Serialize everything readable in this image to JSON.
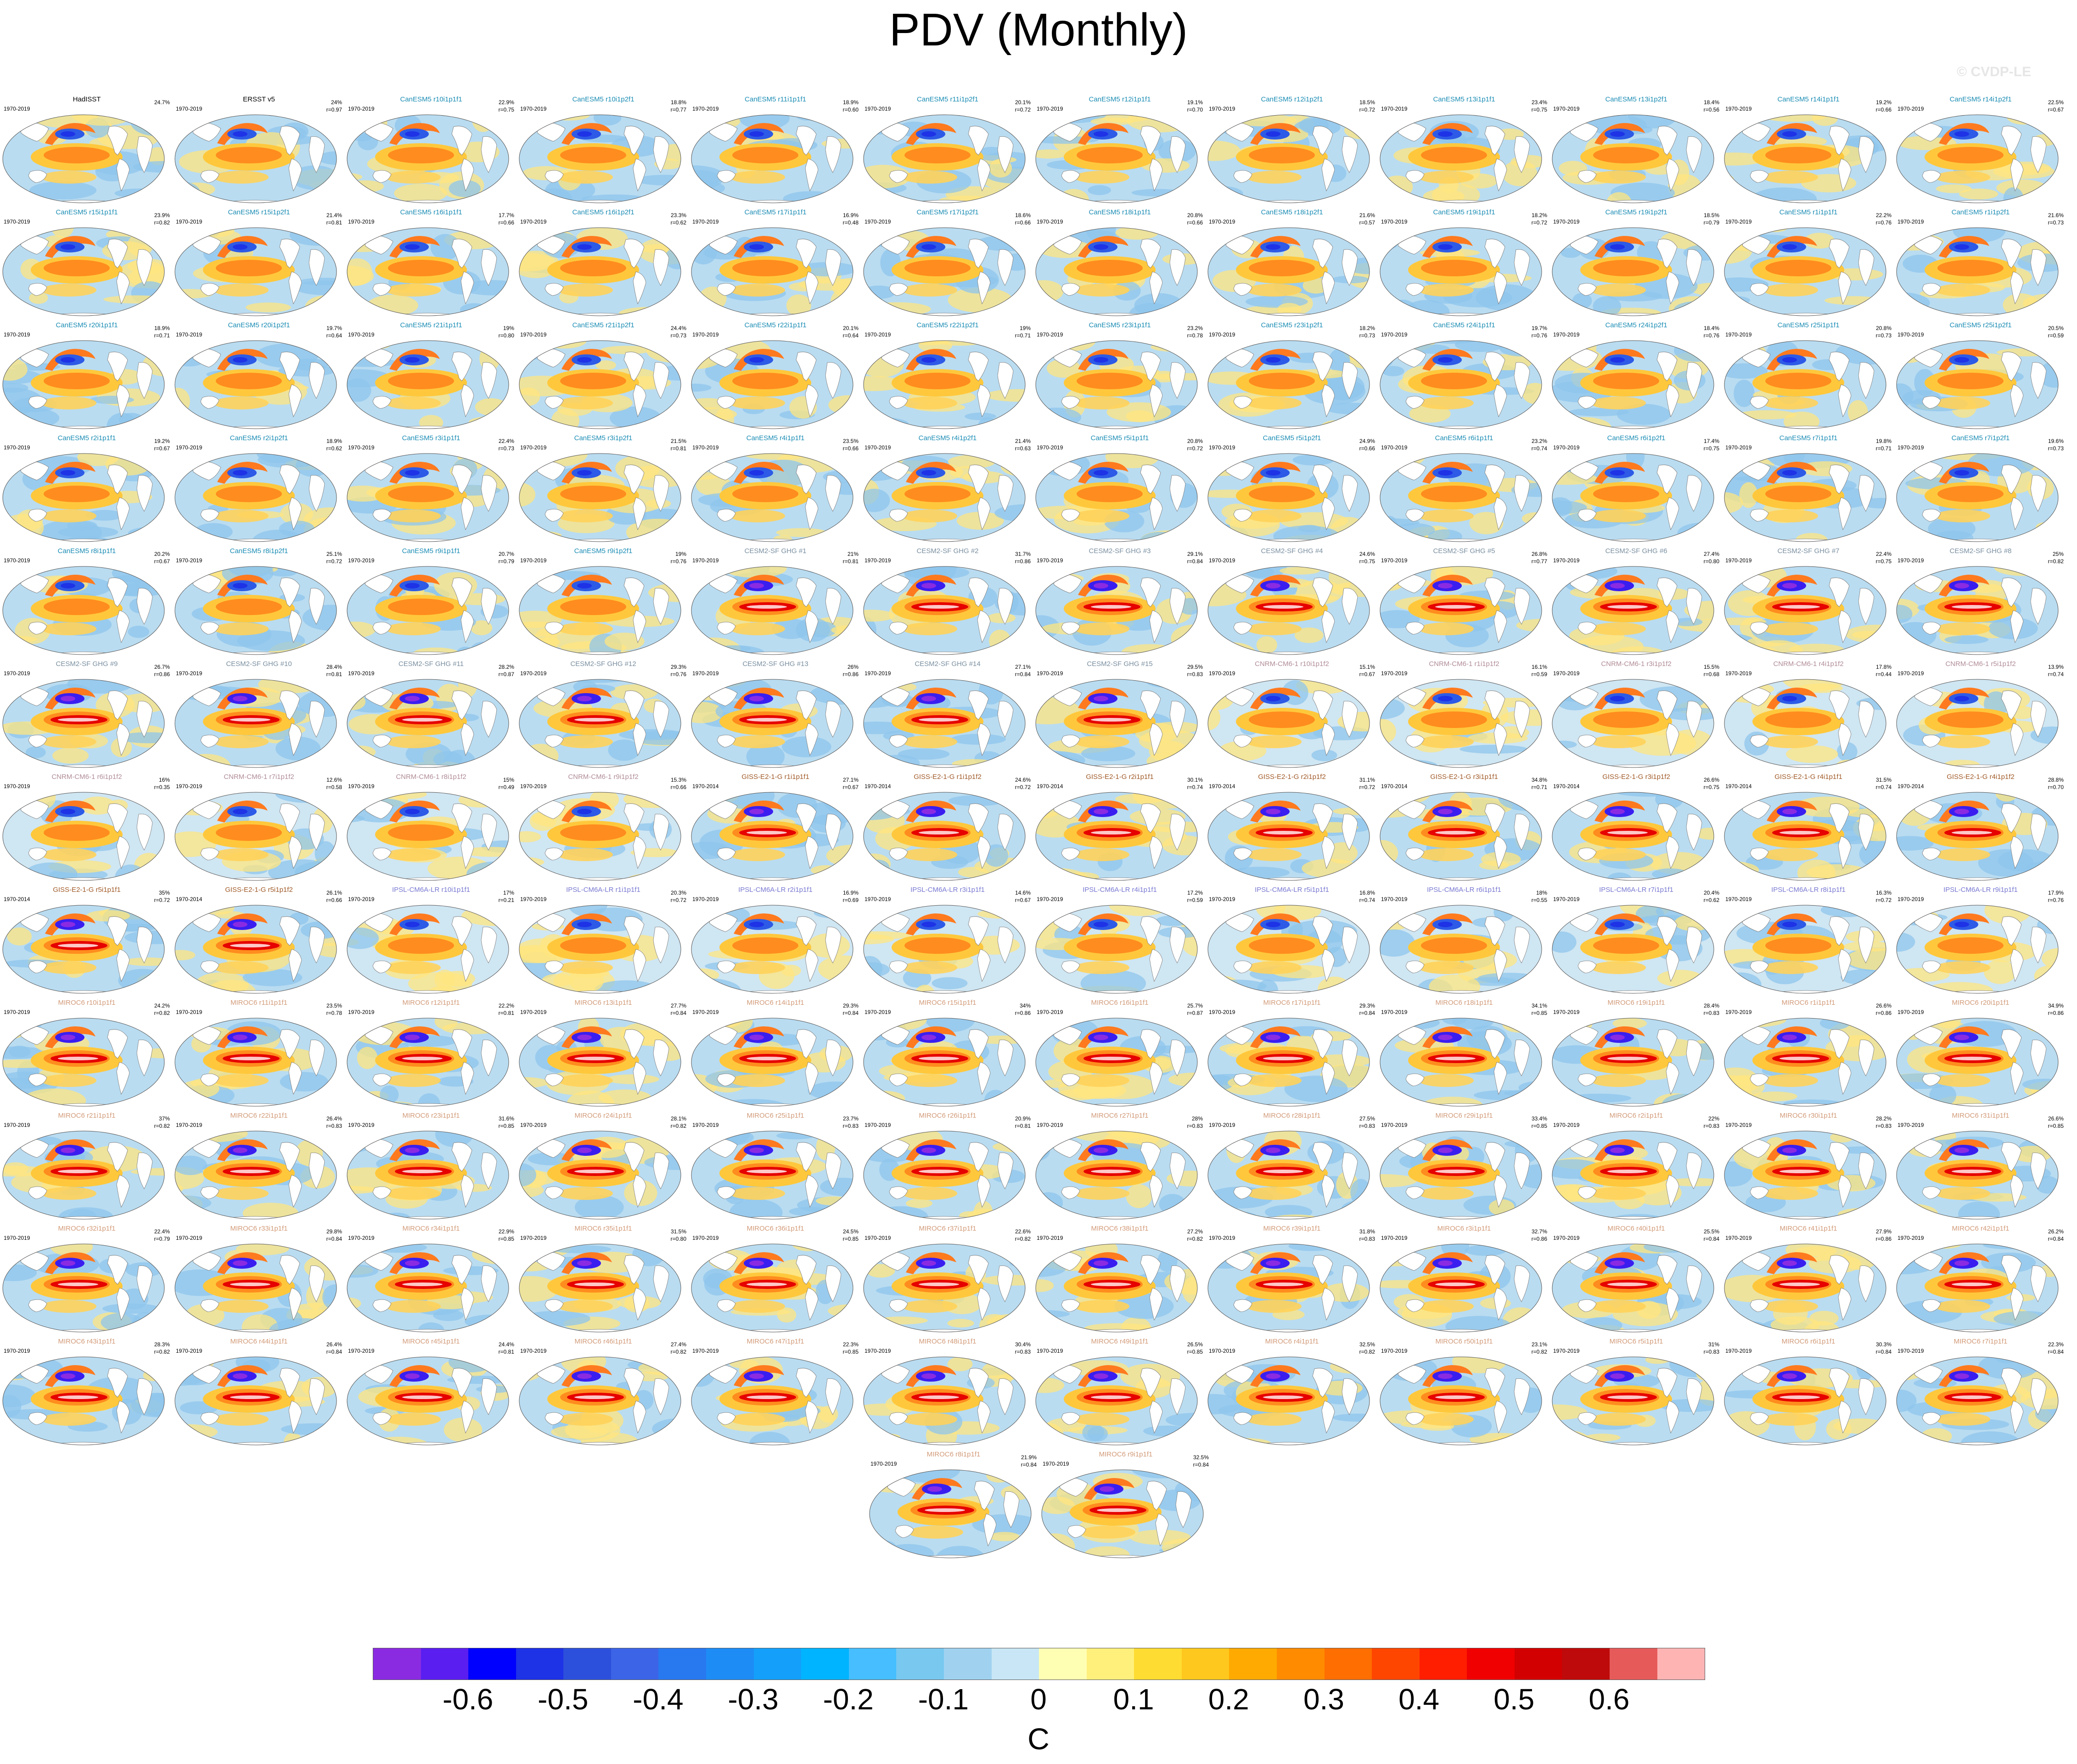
{
  "title": "PDV (Monthly)",
  "watermark": "© CVDP-LE",
  "colorbar": {
    "unit": "C",
    "ticks": [
      "-0.6",
      "-0.5",
      "-0.4",
      "-0.3",
      "-0.2",
      "-0.1",
      "0",
      "0.1",
      "0.2",
      "0.3",
      "0.4",
      "0.5",
      "0.6"
    ],
    "colors": [
      "#8a2be2",
      "#5a1ef0",
      "#0000ff",
      "#1e32e6",
      "#2d50dc",
      "#3c64e6",
      "#2878f0",
      "#1e8cf5",
      "#14a0fa",
      "#00b4ff",
      "#46beff",
      "#78c8f0",
      "#a0d2f0",
      "#c8e6f5",
      "#ffffb4",
      "#fff07c",
      "#ffdc32",
      "#ffc81e",
      "#ffaa00",
      "#ff8c00",
      "#ff6e00",
      "#ff4600",
      "#ff1e00",
      "#f00000",
      "#d20000",
      "#be0a0a",
      "#e65a5a",
      "#ffb4b4"
    ]
  },
  "panels": [
    {
      "t": "HadISST",
      "y": "1970-2019",
      "p": "24.7%",
      "r": "",
      "g": "obs"
    },
    {
      "t": "ERSST v5",
      "y": "1970-2019",
      "p": "24%",
      "r": "r=0.97",
      "g": "obs"
    },
    {
      "t": "CanESM5 r10i1p1f1",
      "y": "1970-2019",
      "p": "22.9%",
      "r": "r=0.75",
      "g": "can"
    },
    {
      "t": "CanESM5 r10i1p2f1",
      "y": "1970-2019",
      "p": "18.8%",
      "r": "r=0.77",
      "g": "can"
    },
    {
      "t": "CanESM5 r11i1p1f1",
      "y": "1970-2019",
      "p": "18.9%",
      "r": "r=0.60",
      "g": "can"
    },
    {
      "t": "CanESM5 r11i1p2f1",
      "y": "1970-2019",
      "p": "20.1%",
      "r": "r=0.72",
      "g": "can"
    },
    {
      "t": "CanESM5 r12i1p1f1",
      "y": "1970-2019",
      "p": "19.1%",
      "r": "r=0.70",
      "g": "can"
    },
    {
      "t": "CanESM5 r12i1p2f1",
      "y": "1970-2019",
      "p": "18.5%",
      "r": "r=0.72",
      "g": "can"
    },
    {
      "t": "CanESM5 r13i1p1f1",
      "y": "1970-2019",
      "p": "23.4%",
      "r": "r=0.75",
      "g": "can"
    },
    {
      "t": "CanESM5 r13i1p2f1",
      "y": "1970-2019",
      "p": "18.4%",
      "r": "r=0.56",
      "g": "can"
    },
    {
      "t": "CanESM5 r14i1p1f1",
      "y": "1970-2019",
      "p": "19.2%",
      "r": "r=0.66",
      "g": "can"
    },
    {
      "t": "CanESM5 r14i1p2f1",
      "y": "1970-2019",
      "p": "22.5%",
      "r": "r=0.67",
      "g": "can"
    },
    {
      "t": "CanESM5 r15i1p1f1",
      "y": "1970-2019",
      "p": "23.9%",
      "r": "r=0.82",
      "g": "can"
    },
    {
      "t": "CanESM5 r15i1p2f1",
      "y": "1970-2019",
      "p": "21.4%",
      "r": "r=0.81",
      "g": "can"
    },
    {
      "t": "CanESM5 r16i1p1f1",
      "y": "1970-2019",
      "p": "17.7%",
      "r": "r=0.66",
      "g": "can"
    },
    {
      "t": "CanESM5 r16i1p2f1",
      "y": "1970-2019",
      "p": "23.3%",
      "r": "r=0.62",
      "g": "can"
    },
    {
      "t": "CanESM5 r17i1p1f1",
      "y": "1970-2019",
      "p": "16.9%",
      "r": "r=0.48",
      "g": "can"
    },
    {
      "t": "CanESM5 r17i1p2f1",
      "y": "1970-2019",
      "p": "18.6%",
      "r": "r=0.66",
      "g": "can"
    },
    {
      "t": "CanESM5 r18i1p1f1",
      "y": "1970-2019",
      "p": "20.8%",
      "r": "r=0.66",
      "g": "can"
    },
    {
      "t": "CanESM5 r18i1p2f1",
      "y": "1970-2019",
      "p": "21.6%",
      "r": "r=0.57",
      "g": "can"
    },
    {
      "t": "CanESM5 r19i1p1f1",
      "y": "1970-2019",
      "p": "18.2%",
      "r": "r=0.72",
      "g": "can"
    },
    {
      "t": "CanESM5 r19i1p2f1",
      "y": "1970-2019",
      "p": "18.5%",
      "r": "r=0.79",
      "g": "can"
    },
    {
      "t": "CanESM5 r1i1p1f1",
      "y": "1970-2019",
      "p": "22.2%",
      "r": "r=0.76",
      "g": "can"
    },
    {
      "t": "CanESM5 r1i1p2f1",
      "y": "1970-2019",
      "p": "21.6%",
      "r": "r=0.73",
      "g": "can"
    },
    {
      "t": "CanESM5 r20i1p1f1",
      "y": "1970-2019",
      "p": "18.9%",
      "r": "r=0.71",
      "g": "can"
    },
    {
      "t": "CanESM5 r20i1p2f1",
      "y": "1970-2019",
      "p": "19.7%",
      "r": "r=0.64",
      "g": "can"
    },
    {
      "t": "CanESM5 r21i1p1f1",
      "y": "1970-2019",
      "p": "19%",
      "r": "r=0.80",
      "g": "can"
    },
    {
      "t": "CanESM5 r21i1p2f1",
      "y": "1970-2019",
      "p": "24.4%",
      "r": "r=0.73",
      "g": "can"
    },
    {
      "t": "CanESM5 r22i1p1f1",
      "y": "1970-2019",
      "p": "20.1%",
      "r": "r=0.64",
      "g": "can"
    },
    {
      "t": "CanESM5 r22i1p2f1",
      "y": "1970-2019",
      "p": "19%",
      "r": "r=0.71",
      "g": "can"
    },
    {
      "t": "CanESM5 r23i1p1f1",
      "y": "1970-2019",
      "p": "23.2%",
      "r": "r=0.78",
      "g": "can"
    },
    {
      "t": "CanESM5 r23i1p2f1",
      "y": "1970-2019",
      "p": "18.2%",
      "r": "r=0.73",
      "g": "can"
    },
    {
      "t": "CanESM5 r24i1p1f1",
      "y": "1970-2019",
      "p": "19.7%",
      "r": "r=0.76",
      "g": "can"
    },
    {
      "t": "CanESM5 r24i1p2f1",
      "y": "1970-2019",
      "p": "18.4%",
      "r": "r=0.76",
      "g": "can"
    },
    {
      "t": "CanESM5 r25i1p1f1",
      "y": "1970-2019",
      "p": "20.8%",
      "r": "r=0.73",
      "g": "can"
    },
    {
      "t": "CanESM5 r25i1p2f1",
      "y": "1970-2019",
      "p": "20.5%",
      "r": "r=0.59",
      "g": "can"
    },
    {
      "t": "CanESM5 r2i1p1f1",
      "y": "1970-2019",
      "p": "19.2%",
      "r": "r=0.67",
      "g": "can"
    },
    {
      "t": "CanESM5 r2i1p2f1",
      "y": "1970-2019",
      "p": "18.9%",
      "r": "r=0.62",
      "g": "can"
    },
    {
      "t": "CanESM5 r3i1p1f1",
      "y": "1970-2019",
      "p": "22.4%",
      "r": "r=0.73",
      "g": "can"
    },
    {
      "t": "CanESM5 r3i1p2f1",
      "y": "1970-2019",
      "p": "21.5%",
      "r": "r=0.81",
      "g": "can"
    },
    {
      "t": "CanESM5 r4i1p1f1",
      "y": "1970-2019",
      "p": "23.5%",
      "r": "r=0.66",
      "g": "can"
    },
    {
      "t": "CanESM5 r4i1p2f1",
      "y": "1970-2019",
      "p": "21.4%",
      "r": "r=0.63",
      "g": "can"
    },
    {
      "t": "CanESM5 r5i1p1f1",
      "y": "1970-2019",
      "p": "20.8%",
      "r": "r=0.72",
      "g": "can"
    },
    {
      "t": "CanESM5 r5i1p2f1",
      "y": "1970-2019",
      "p": "24.9%",
      "r": "r=0.66",
      "g": "can"
    },
    {
      "t": "CanESM5 r6i1p1f1",
      "y": "1970-2019",
      "p": "23.2%",
      "r": "r=0.74",
      "g": "can"
    },
    {
      "t": "CanESM5 r6i1p2f1",
      "y": "1970-2019",
      "p": "17.4%",
      "r": "r=0.75",
      "g": "can"
    },
    {
      "t": "CanESM5 r7i1p1f1",
      "y": "1970-2019",
      "p": "19.8%",
      "r": "r=0.71",
      "g": "can"
    },
    {
      "t": "CanESM5 r7i1p2f1",
      "y": "1970-2019",
      "p": "19.6%",
      "r": "r=0.73",
      "g": "can"
    },
    {
      "t": "CanESM5 r8i1p1f1",
      "y": "1970-2019",
      "p": "20.2%",
      "r": "r=0.67",
      "g": "can"
    },
    {
      "t": "CanESM5 r8i1p2f1",
      "y": "1970-2019",
      "p": "25.1%",
      "r": "r=0.72",
      "g": "can"
    },
    {
      "t": "CanESM5 r9i1p1f1",
      "y": "1970-2019",
      "p": "20.7%",
      "r": "r=0.79",
      "g": "can"
    },
    {
      "t": "CanESM5 r9i1p2f1",
      "y": "1970-2019",
      "p": "19%",
      "r": "r=0.76",
      "g": "can"
    },
    {
      "t": "CESM2-SF GHG #1",
      "y": "1970-2019",
      "p": "21%",
      "r": "r=0.81",
      "g": "cesm"
    },
    {
      "t": "CESM2-SF GHG #2",
      "y": "1970-2019",
      "p": "31.7%",
      "r": "r=0.86",
      "g": "cesm"
    },
    {
      "t": "CESM2-SF GHG #3",
      "y": "1970-2019",
      "p": "29.1%",
      "r": "r=0.84",
      "g": "cesm"
    },
    {
      "t": "CESM2-SF GHG #4",
      "y": "1970-2019",
      "p": "24.6%",
      "r": "r=0.75",
      "g": "cesm"
    },
    {
      "t": "CESM2-SF GHG #5",
      "y": "1970-2019",
      "p": "26.8%",
      "r": "r=0.77",
      "g": "cesm"
    },
    {
      "t": "CESM2-SF GHG #6",
      "y": "1970-2019",
      "p": "27.4%",
      "r": "r=0.80",
      "g": "cesm"
    },
    {
      "t": "CESM2-SF GHG #7",
      "y": "1970-2019",
      "p": "22.4%",
      "r": "r=0.75",
      "g": "cesm"
    },
    {
      "t": "CESM2-SF GHG #8",
      "y": "1970-2019",
      "p": "25%",
      "r": "r=0.82",
      "g": "cesm"
    },
    {
      "t": "CESM2-SF GHG #9",
      "y": "1970-2019",
      "p": "26.7%",
      "r": "r=0.86",
      "g": "cesm"
    },
    {
      "t": "CESM2-SF GHG #10",
      "y": "1970-2019",
      "p": "28.4%",
      "r": "r=0.81",
      "g": "cesm"
    },
    {
      "t": "CESM2-SF GHG #11",
      "y": "1970-2019",
      "p": "28.2%",
      "r": "r=0.87",
      "g": "cesm"
    },
    {
      "t": "CESM2-SF GHG #12",
      "y": "1970-2019",
      "p": "29.3%",
      "r": "r=0.76",
      "g": "cesm"
    },
    {
      "t": "CESM2-SF GHG #13",
      "y": "1970-2019",
      "p": "26%",
      "r": "r=0.86",
      "g": "cesm"
    },
    {
      "t": "CESM2-SF GHG #14",
      "y": "1970-2019",
      "p": "27.1%",
      "r": "r=0.84",
      "g": "cesm"
    },
    {
      "t": "CESM2-SF GHG #15",
      "y": "1970-2019",
      "p": "29.5%",
      "r": "r=0.83",
      "g": "cesm"
    },
    {
      "t": "CNRM-CM6-1 r10i1p1f2",
      "y": "1970-2019",
      "p": "15.1%",
      "r": "r=0.67",
      "g": "cnrm"
    },
    {
      "t": "CNRM-CM6-1 r1i1p1f2",
      "y": "1970-2019",
      "p": "16.1%",
      "r": "r=0.59",
      "g": "cnrm"
    },
    {
      "t": "CNRM-CM6-1 r3i1p1f2",
      "y": "1970-2019",
      "p": "15.5%",
      "r": "r=0.68",
      "g": "cnrm"
    },
    {
      "t": "CNRM-CM6-1 r4i1p1f2",
      "y": "1970-2019",
      "p": "17.8%",
      "r": "r=0.44",
      "g": "cnrm"
    },
    {
      "t": "CNRM-CM6-1 r5i1p1f2",
      "y": "1970-2019",
      "p": "13.9%",
      "r": "r=0.74",
      "g": "cnrm"
    },
    {
      "t": "CNRM-CM6-1 r6i1p1f2",
      "y": "1970-2019",
      "p": "16%",
      "r": "r=0.35",
      "g": "cnrm"
    },
    {
      "t": "CNRM-CM6-1 r7i1p1f2",
      "y": "1970-2019",
      "p": "12.6%",
      "r": "r=0.58",
      "g": "cnrm"
    },
    {
      "t": "CNRM-CM6-1 r8i1p1f2",
      "y": "1970-2019",
      "p": "15%",
      "r": "r=0.49",
      "g": "cnrm"
    },
    {
      "t": "CNRM-CM6-1 r9i1p1f2",
      "y": "1970-2019",
      "p": "15.3%",
      "r": "r=0.66",
      "g": "cnrm"
    },
    {
      "t": "GISS-E2-1-G r1i1p1f1",
      "y": "1970-2014",
      "p": "27.1%",
      "r": "r=0.67",
      "g": "giss"
    },
    {
      "t": "GISS-E2-1-G r1i1p1f2",
      "y": "1970-2014",
      "p": "24.6%",
      "r": "r=0.72",
      "g": "giss"
    },
    {
      "t": "GISS-E2-1-G r2i1p1f1",
      "y": "1970-2014",
      "p": "30.1%",
      "r": "r=0.74",
      "g": "giss"
    },
    {
      "t": "GISS-E2-1-G r2i1p1f2",
      "y": "1970-2014",
      "p": "31.1%",
      "r": "r=0.72",
      "g": "giss"
    },
    {
      "t": "GISS-E2-1-G r3i1p1f1",
      "y": "1970-2014",
      "p": "34.8%",
      "r": "r=0.71",
      "g": "giss"
    },
    {
      "t": "GISS-E2-1-G r3i1p1f2",
      "y": "1970-2014",
      "p": "26.6%",
      "r": "r=0.75",
      "g": "giss"
    },
    {
      "t": "GISS-E2-1-G r4i1p1f1",
      "y": "1970-2014",
      "p": "31.5%",
      "r": "r=0.74",
      "g": "giss"
    },
    {
      "t": "GISS-E2-1-G r4i1p1f2",
      "y": "1970-2014",
      "p": "28.8%",
      "r": "r=0.70",
      "g": "giss"
    },
    {
      "t": "GISS-E2-1-G r5i1p1f1",
      "y": "1970-2014",
      "p": "35%",
      "r": "r=0.72",
      "g": "giss"
    },
    {
      "t": "GISS-E2-1-G r5i1p1f2",
      "y": "1970-2014",
      "p": "26.1%",
      "r": "r=0.66",
      "g": "giss"
    },
    {
      "t": "IPSL-CM6A-LR r10i1p1f1",
      "y": "1970-2019",
      "p": "17%",
      "r": "r=0.21",
      "g": "ipsl"
    },
    {
      "t": "IPSL-CM6A-LR r1i1p1f1",
      "y": "1970-2019",
      "p": "20.3%",
      "r": "r=0.72",
      "g": "ipsl"
    },
    {
      "t": "IPSL-CM6A-LR r2i1p1f1",
      "y": "1970-2019",
      "p": "16.9%",
      "r": "r=0.69",
      "g": "ipsl"
    },
    {
      "t": "IPSL-CM6A-LR r3i1p1f1",
      "y": "1970-2019",
      "p": "14.6%",
      "r": "r=0.67",
      "g": "ipsl"
    },
    {
      "t": "IPSL-CM6A-LR r4i1p1f1",
      "y": "1970-2019",
      "p": "17.2%",
      "r": "r=0.59",
      "g": "ipsl"
    },
    {
      "t": "IPSL-CM6A-LR r5i1p1f1",
      "y": "1970-2019",
      "p": "16.8%",
      "r": "r=0.74",
      "g": "ipsl"
    },
    {
      "t": "IPSL-CM6A-LR r6i1p1f1",
      "y": "1970-2019",
      "p": "18%",
      "r": "r=0.55",
      "g": "ipsl"
    },
    {
      "t": "IPSL-CM6A-LR r7i1p1f1",
      "y": "1970-2019",
      "p": "20.4%",
      "r": "r=0.62",
      "g": "ipsl"
    },
    {
      "t": "IPSL-CM6A-LR r8i1p1f1",
      "y": "1970-2019",
      "p": "16.3%",
      "r": "r=0.72",
      "g": "ipsl"
    },
    {
      "t": "IPSL-CM6A-LR r9i1p1f1",
      "y": "1970-2019",
      "p": "17.9%",
      "r": "r=0.76",
      "g": "ipsl"
    },
    {
      "t": "MIROC6 r10i1p1f1",
      "y": "1970-2019",
      "p": "24.2%",
      "r": "r=0.82",
      "g": "miroc"
    },
    {
      "t": "MIROC6 r11i1p1f1",
      "y": "1970-2019",
      "p": "23.5%",
      "r": "r=0.78",
      "g": "miroc"
    },
    {
      "t": "MIROC6 r12i1p1f1",
      "y": "1970-2019",
      "p": "22.2%",
      "r": "r=0.81",
      "g": "miroc"
    },
    {
      "t": "MIROC6 r13i1p1f1",
      "y": "1970-2019",
      "p": "27.7%",
      "r": "r=0.84",
      "g": "miroc"
    },
    {
      "t": "MIROC6 r14i1p1f1",
      "y": "1970-2019",
      "p": "29.3%",
      "r": "r=0.84",
      "g": "miroc"
    },
    {
      "t": "MIROC6 r15i1p1f1",
      "y": "1970-2019",
      "p": "34%",
      "r": "r=0.86",
      "g": "miroc"
    },
    {
      "t": "MIROC6 r16i1p1f1",
      "y": "1970-2019",
      "p": "25.7%",
      "r": "r=0.87",
      "g": "miroc"
    },
    {
      "t": "MIROC6 r17i1p1f1",
      "y": "1970-2019",
      "p": "29.3%",
      "r": "r=0.84",
      "g": "miroc"
    },
    {
      "t": "MIROC6 r18i1p1f1",
      "y": "1970-2019",
      "p": "34.1%",
      "r": "r=0.85",
      "g": "miroc"
    },
    {
      "t": "MIROC6 r19i1p1f1",
      "y": "1970-2019",
      "p": "28.4%",
      "r": "r=0.83",
      "g": "miroc"
    },
    {
      "t": "MIROC6 r1i1p1f1",
      "y": "1970-2019",
      "p": "26.6%",
      "r": "r=0.86",
      "g": "miroc"
    },
    {
      "t": "MIROC6 r20i1p1f1",
      "y": "1970-2019",
      "p": "34.9%",
      "r": "r=0.86",
      "g": "miroc"
    },
    {
      "t": "MIROC6 r21i1p1f1",
      "y": "1970-2019",
      "p": "37%",
      "r": "r=0.82",
      "g": "miroc"
    },
    {
      "t": "MIROC6 r22i1p1f1",
      "y": "1970-2019",
      "p": "26.4%",
      "r": "r=0.83",
      "g": "miroc"
    },
    {
      "t": "MIROC6 r23i1p1f1",
      "y": "1970-2019",
      "p": "31.6%",
      "r": "r=0.85",
      "g": "miroc"
    },
    {
      "t": "MIROC6 r24i1p1f1",
      "y": "1970-2019",
      "p": "28.1%",
      "r": "r=0.82",
      "g": "miroc"
    },
    {
      "t": "MIROC6 r25i1p1f1",
      "y": "1970-2019",
      "p": "23.7%",
      "r": "r=0.83",
      "g": "miroc"
    },
    {
      "t": "MIROC6 r26i1p1f1",
      "y": "1970-2019",
      "p": "20.9%",
      "r": "r=0.81",
      "g": "miroc"
    },
    {
      "t": "MIROC6 r27i1p1f1",
      "y": "1970-2019",
      "p": "28%",
      "r": "r=0.83",
      "g": "miroc"
    },
    {
      "t": "MIROC6 r28i1p1f1",
      "y": "1970-2019",
      "p": "27.5%",
      "r": "r=0.83",
      "g": "miroc"
    },
    {
      "t": "MIROC6 r29i1p1f1",
      "y": "1970-2019",
      "p": "33.4%",
      "r": "r=0.85",
      "g": "miroc"
    },
    {
      "t": "MIROC6 r2i1p1f1",
      "y": "1970-2019",
      "p": "22%",
      "r": "r=0.83",
      "g": "miroc"
    },
    {
      "t": "MIROC6 r30i1p1f1",
      "y": "1970-2019",
      "p": "28.2%",
      "r": "r=0.83",
      "g": "miroc"
    },
    {
      "t": "MIROC6 r31i1p1f1",
      "y": "1970-2019",
      "p": "26.6%",
      "r": "r=0.85",
      "g": "miroc"
    },
    {
      "t": "MIROC6 r32i1p1f1",
      "y": "1970-2019",
      "p": "22.4%",
      "r": "r=0.79",
      "g": "miroc"
    },
    {
      "t": "MIROC6 r33i1p1f1",
      "y": "1970-2019",
      "p": "29.8%",
      "r": "r=0.84",
      "g": "miroc"
    },
    {
      "t": "MIROC6 r34i1p1f1",
      "y": "1970-2019",
      "p": "22.9%",
      "r": "r=0.85",
      "g": "miroc"
    },
    {
      "t": "MIROC6 r35i1p1f1",
      "y": "1970-2019",
      "p": "31.5%",
      "r": "r=0.80",
      "g": "miroc"
    },
    {
      "t": "MIROC6 r36i1p1f1",
      "y": "1970-2019",
      "p": "24.5%",
      "r": "r=0.85",
      "g": "miroc"
    },
    {
      "t": "MIROC6 r37i1p1f1",
      "y": "1970-2019",
      "p": "22.6%",
      "r": "r=0.82",
      "g": "miroc"
    },
    {
      "t": "MIROC6 r38i1p1f1",
      "y": "1970-2019",
      "p": "27.2%",
      "r": "r=0.82",
      "g": "miroc"
    },
    {
      "t": "MIROC6 r39i1p1f1",
      "y": "1970-2019",
      "p": "31.8%",
      "r": "r=0.83",
      "g": "miroc"
    },
    {
      "t": "MIROC6 r3i1p1f1",
      "y": "1970-2019",
      "p": "32.7%",
      "r": "r=0.86",
      "g": "miroc"
    },
    {
      "t": "MIROC6 r40i1p1f1",
      "y": "1970-2019",
      "p": "25.5%",
      "r": "r=0.84",
      "g": "miroc"
    },
    {
      "t": "MIROC6 r41i1p1f1",
      "y": "1970-2019",
      "p": "27.9%",
      "r": "r=0.86",
      "g": "miroc"
    },
    {
      "t": "MIROC6 r42i1p1f1",
      "y": "1970-2019",
      "p": "26.2%",
      "r": "r=0.84",
      "g": "miroc"
    },
    {
      "t": "MIROC6 r43i1p1f1",
      "y": "1970-2019",
      "p": "28.3%",
      "r": "r=0.82",
      "g": "miroc"
    },
    {
      "t": "MIROC6 r44i1p1f1",
      "y": "1970-2019",
      "p": "26.4%",
      "r": "r=0.84",
      "g": "miroc"
    },
    {
      "t": "MIROC6 r45i1p1f1",
      "y": "1970-2019",
      "p": "24.4%",
      "r": "r=0.81",
      "g": "miroc"
    },
    {
      "t": "MIROC6 r46i1p1f1",
      "y": "1970-2019",
      "p": "27.4%",
      "r": "r=0.82",
      "g": "miroc"
    },
    {
      "t": "MIROC6 r47i1p1f1",
      "y": "1970-2019",
      "p": "22.3%",
      "r": "r=0.85",
      "g": "miroc"
    },
    {
      "t": "MIROC6 r48i1p1f1",
      "y": "1970-2019",
      "p": "30.4%",
      "r": "r=0.83",
      "g": "miroc"
    },
    {
      "t": "MIROC6 r49i1p1f1",
      "y": "1970-2019",
      "p": "26.5%",
      "r": "r=0.85",
      "g": "miroc"
    },
    {
      "t": "MIROC6 r4i1p1f1",
      "y": "1970-2019",
      "p": "32.5%",
      "r": "r=0.82",
      "g": "miroc"
    },
    {
      "t": "MIROC6 r50i1p1f1",
      "y": "1970-2019",
      "p": "23.1%",
      "r": "r=0.82",
      "g": "miroc"
    },
    {
      "t": "MIROC6 r5i1p1f1",
      "y": "1970-2019",
      "p": "31%",
      "r": "r=0.83",
      "g": "miroc"
    },
    {
      "t": "MIROC6 r6i1p1f1",
      "y": "1970-2019",
      "p": "30.3%",
      "r": "r=0.84",
      "g": "miroc"
    },
    {
      "t": "MIROC6 r7i1p1f1",
      "y": "1970-2019",
      "p": "22.3%",
      "r": "r=0.84",
      "g": "miroc"
    },
    {
      "t": "MIROC6 r8i1p1f1",
      "y": "1970-2019",
      "p": "21.9%",
      "r": "r=0.84",
      "g": "miroc"
    },
    {
      "t": "MIROC6 r9i1p1f1",
      "y": "1970-2019",
      "p": "32.5%",
      "r": "r=0.84",
      "g": "miroc"
    }
  ],
  "group_colors": {
    "obs": "#000000",
    "can": "#1a8cb4",
    "cesm": "#7a8fa0",
    "cnrm": "#b08c96",
    "giss": "#a05a28",
    "ipsl": "#7878d2",
    "miroc": "#d29a78"
  }
}
